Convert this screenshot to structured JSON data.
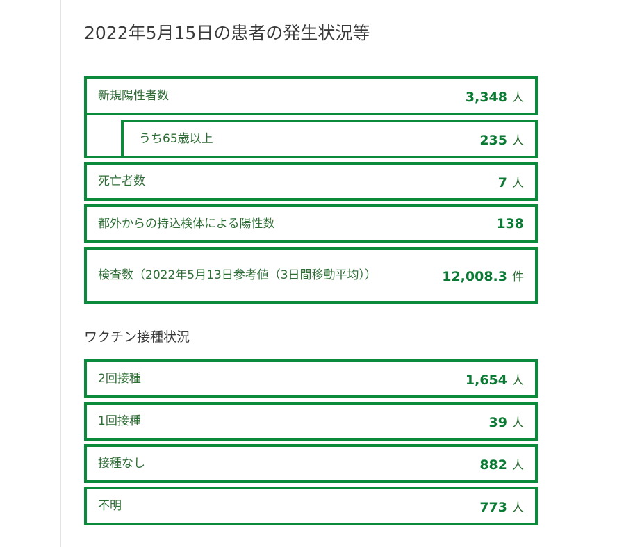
{
  "title": "2022年5月15日の患者の発生状況等",
  "patients": {
    "new_positive": {
      "label": "新規陽性者数",
      "value": "3,348",
      "unit": "人"
    },
    "over65": {
      "label": "うち65歳以上",
      "value": "235",
      "unit": "人"
    },
    "deaths": {
      "label": "死亡者数",
      "value": "7",
      "unit": "人"
    },
    "outside": {
      "label": "都外からの持込検体による陽性数",
      "value": "138",
      "unit": ""
    },
    "tests": {
      "label": "検査数（2022年5月13日参考値（3日間移動平均））",
      "value": "12,008.3",
      "unit": "件"
    }
  },
  "vaccine": {
    "title": "ワクチン接種状況",
    "items": [
      {
        "label": "2回接種",
        "value": "1,654",
        "unit": "人"
      },
      {
        "label": "1回接種",
        "value": "39",
        "unit": "人"
      },
      {
        "label": "接種なし",
        "value": "882",
        "unit": "人"
      },
      {
        "label": "不明",
        "value": "773",
        "unit": "人"
      }
    ]
  },
  "colors": {
    "accent_border": "#0a8a3a",
    "value_text": "#0a7a34",
    "label_text": "#2f6d36"
  }
}
